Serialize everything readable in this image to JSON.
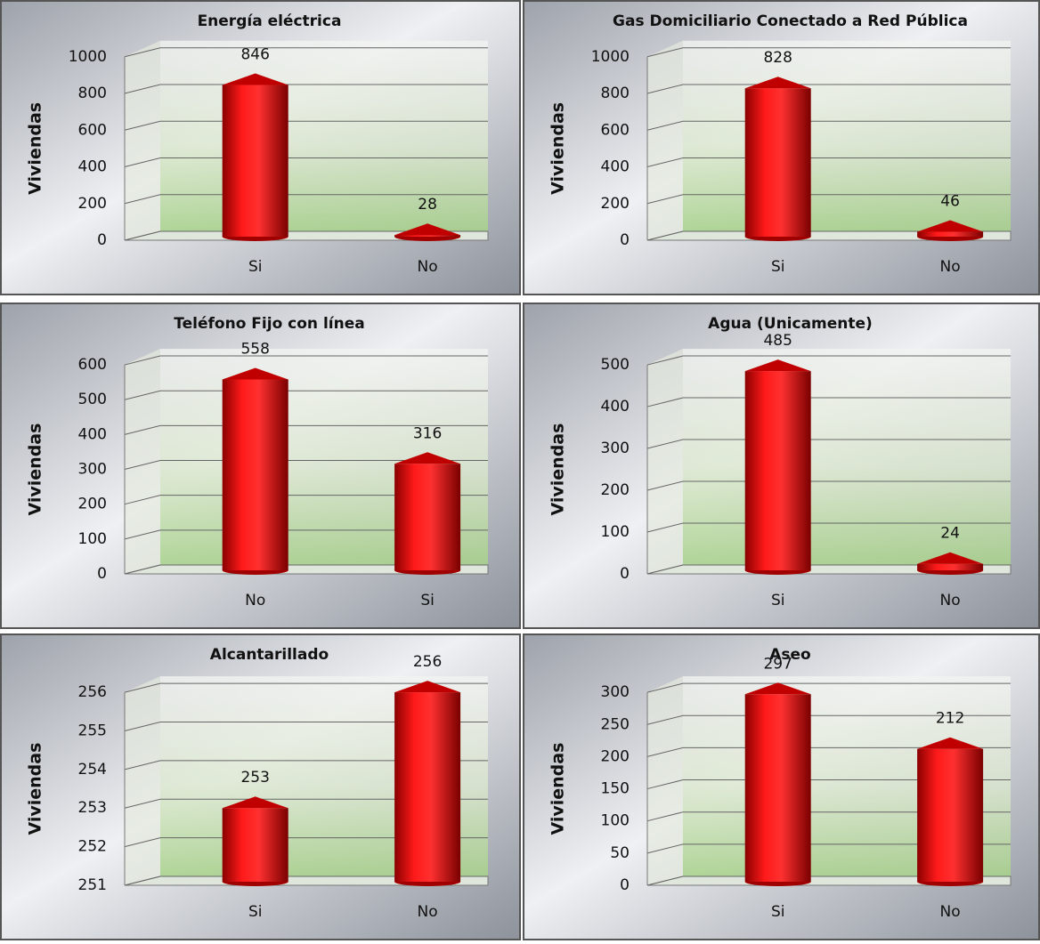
{
  "chart_data": [
    {
      "type": "bar",
      "title": "Energía eléctrica",
      "y_label": "Viviendas",
      "categories": [
        "Si",
        "No"
      ],
      "values": [
        846,
        28
      ],
      "color": "#e00000",
      "ylim": [
        0,
        1000
      ],
      "yticks": [
        0,
        200,
        400,
        600,
        800,
        1000
      ],
      "grid": true
    },
    {
      "type": "bar",
      "title": "Gas Domiciliario Conectado a Red Pública",
      "y_label": "Viviendas",
      "categories": [
        "Si",
        "No"
      ],
      "values": [
        828,
        46
      ],
      "color": "#e00000",
      "ylim": [
        0,
        1000
      ],
      "yticks": [
        0,
        200,
        400,
        600,
        800,
        1000
      ],
      "grid": true
    },
    {
      "type": "bar",
      "title": "Teléfono Fijo con línea",
      "y_label": "Viviendas",
      "categories": [
        "No",
        "Si"
      ],
      "values": [
        558,
        316
      ],
      "color": "#e00000",
      "ylim": [
        0,
        600
      ],
      "yticks": [
        0,
        100,
        200,
        300,
        400,
        500,
        600
      ],
      "grid": true
    },
    {
      "type": "bar",
      "title": "Agua (Unicamente)",
      "y_label": "Viviendas",
      "categories": [
        "Si",
        "No"
      ],
      "values": [
        485,
        24
      ],
      "color": "#e00000",
      "ylim": [
        0,
        500
      ],
      "yticks": [
        0,
        100,
        200,
        300,
        400,
        500
      ],
      "grid": true
    },
    {
      "type": "bar",
      "title": "Alcantarillado",
      "y_label": "Viviendas",
      "categories": [
        "Si",
        "No"
      ],
      "values": [
        253,
        256
      ],
      "color": "#e00000",
      "ylim": [
        251,
        256
      ],
      "yticks": [
        251,
        252,
        253,
        254,
        255,
        256
      ],
      "grid": true
    },
    {
      "type": "bar",
      "title": "Aseo",
      "y_label": "Viviendas",
      "categories": [
        "Si",
        "No"
      ],
      "values": [
        297,
        212
      ],
      "color": "#e00000",
      "ylim": [
        0,
        300
      ],
      "yticks": [
        0,
        50,
        100,
        150,
        200,
        250,
        300
      ],
      "grid": true
    }
  ]
}
